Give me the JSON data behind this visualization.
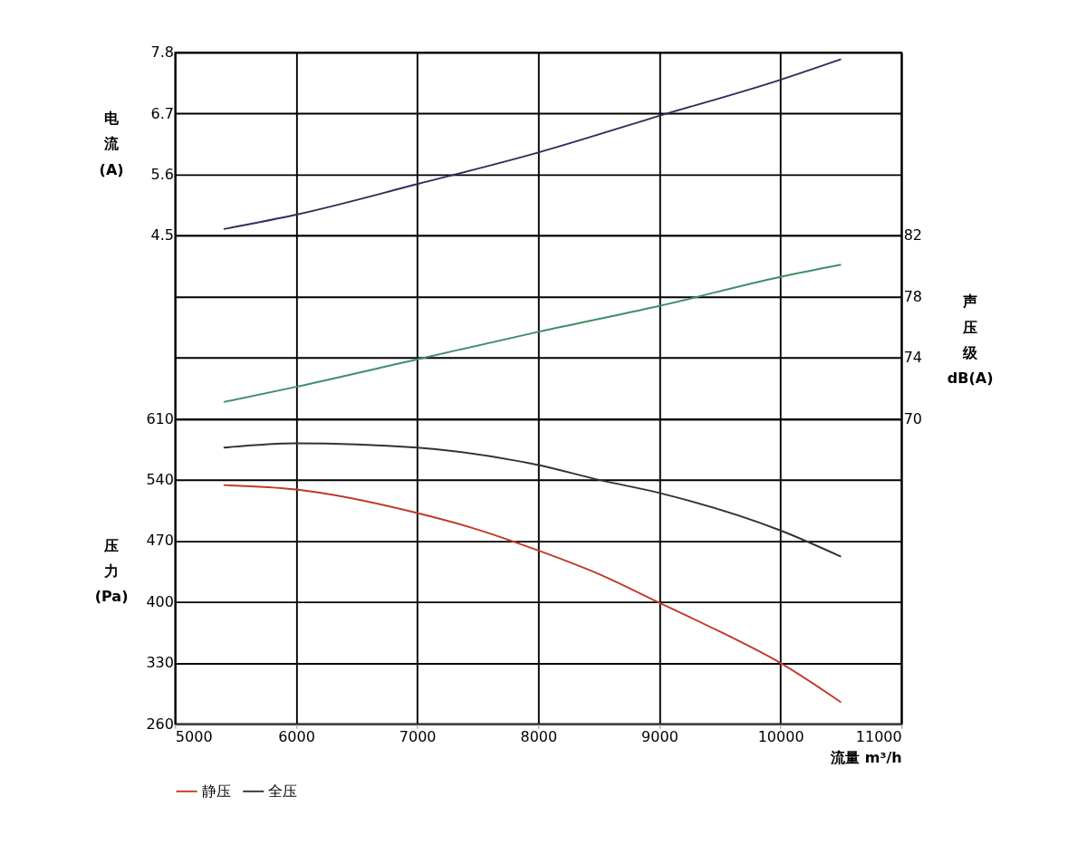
{
  "chart_data": {
    "type": "line",
    "xlabel": "流量 m³/h",
    "ylabel": "压力(Pa)",
    "y2label": "声压级dB(A)",
    "y3label": "电流(A)",
    "xlim": [
      5000,
      11000
    ],
    "xticks": [
      5000,
      6000,
      7000,
      8000,
      9000,
      10000,
      11000
    ],
    "ylim": [
      260,
      1030
    ],
    "yticks": [
      260,
      330,
      400,
      470,
      540,
      610
    ],
    "y2lim": [
      50,
      94
    ],
    "y2ticks": [
      70,
      74,
      78,
      82
    ],
    "y3lim": [
      -4.3,
      7.8
    ],
    "y3ticks": [
      4.5,
      5.6,
      6.7,
      7.8
    ],
    "grid": true,
    "legend": "bottom",
    "series": [
      {
        "name": "静压",
        "color": "#c0392b",
        "axis": "y",
        "x": [
          5400,
          6000,
          7000,
          7500,
          8000,
          8500,
          9000,
          9500,
          10000,
          10500
        ],
        "values": [
          534,
          529,
          502,
          483,
          459,
          432,
          399,
          366,
          330,
          285
        ]
      },
      {
        "name": "全压",
        "color": "#333333",
        "axis": "y",
        "x": [
          5400,
          6000,
          7000,
          8000,
          8500,
          9000,
          10000,
          10500
        ],
        "values": [
          577,
          582,
          577,
          557,
          540,
          525,
          482,
          452
        ]
      },
      {
        "color": "#3f8f66",
        "axis": "y2",
        "x": [
          5400,
          6000,
          7000,
          8000,
          9000,
          10000,
          10500
        ],
        "values": [
          71.1,
          72.1,
          73.9,
          75.7,
          77.4,
          79.3,
          80.1
        ]
      },
      {
        "color": "#2e2e5e",
        "axis": "y3",
        "x": [
          5400,
          6000,
          7000,
          8000,
          9000,
          10000,
          10500
        ],
        "values": [
          4.62,
          4.88,
          5.43,
          6.0,
          6.66,
          7.31,
          7.68
        ]
      }
    ]
  }
}
